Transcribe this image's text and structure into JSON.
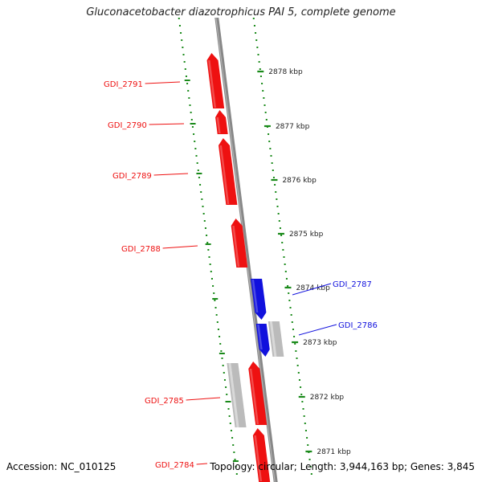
{
  "title": "Gluconacetobacter diazotrophicus PAI 5, complete genome",
  "footer": {
    "accession": "Accession: NC_010125",
    "topology": "Topology: circular; Length: 3,944,163 bp; Genes: 3,845"
  },
  "colors": {
    "forward_strand": "#ee1111",
    "reverse_strand": "#1111dd",
    "other_feature": "#bbbbbb",
    "backbone": "#888888",
    "dotted_track": "#1a8a1a",
    "tick_text": "#222222"
  },
  "ticks": [
    {
      "label": "2878 kbp"
    },
    {
      "label": "2877 kbp"
    },
    {
      "label": "2876 kbp"
    },
    {
      "label": "2875 kbp"
    },
    {
      "label": "2874 kbp"
    },
    {
      "label": "2873 kbp"
    },
    {
      "label": "2872 kbp"
    },
    {
      "label": "2871 kbp"
    }
  ],
  "genes": [
    {
      "label": "GDI_2791",
      "strand": "forward"
    },
    {
      "label": "GDI_2790",
      "strand": "forward"
    },
    {
      "label": "GDI_2789",
      "strand": "forward"
    },
    {
      "label": "GDI_2788",
      "strand": "forward"
    },
    {
      "label": "GDI_2787",
      "strand": "reverse"
    },
    {
      "label": "GDI_2786",
      "strand": "reverse"
    },
    {
      "label": "GDI_2785",
      "strand": "forward"
    },
    {
      "label": "GDI_2784",
      "strand": "forward"
    }
  ],
  "other_features": [
    {
      "strand": "reverse"
    },
    {
      "strand": "forward"
    }
  ]
}
